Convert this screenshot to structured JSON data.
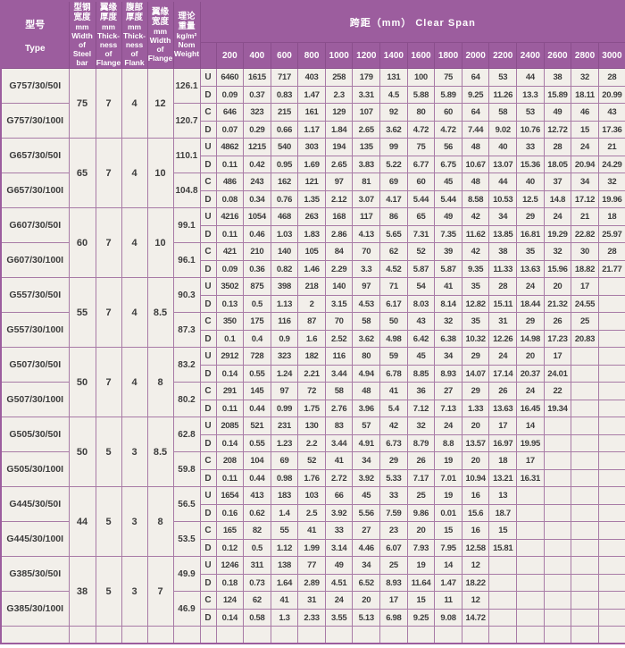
{
  "colors": {
    "header_bg": "#9c5d9e",
    "header_line": "#8a4e8c",
    "cell_bg": "#f2efea",
    "border": "#a87ba6",
    "text": "#3c3c3c",
    "header_text": "#ffffff"
  },
  "table": {
    "header": {
      "type": {
        "cn": "型号",
        "en": "Type"
      },
      "dims": [
        {
          "cn": "型钢\n宽度",
          "unit": "mm",
          "en": "Width\nof\nSteel\nbar"
        },
        {
          "cn": "翼缘\n厚度",
          "unit": "mm",
          "en": "Thick-\nness\nof\nFlange"
        },
        {
          "cn": "腹部\n厚度",
          "unit": "mm",
          "en": "Thick-\nness\nof\nFlank"
        },
        {
          "cn": "翼缘\n宽度",
          "unit": "mm",
          "en": "Width\nof\nFlange"
        },
        {
          "cn": "理论\n重量",
          "unit": "kg/m²",
          "en": "Nom\nWeight"
        }
      ],
      "clear_span": "跨距（mm） Clear Span",
      "spans": [
        "200",
        "400",
        "600",
        "800",
        "1000",
        "1200",
        "1400",
        "1600",
        "1800",
        "2000",
        "2200",
        "2400",
        "2600",
        "2800",
        "3000"
      ]
    },
    "groups": [
      {
        "types": [
          "G757/30/50I",
          "G757/30/100I"
        ],
        "width": "75",
        "flange_thickness": "7",
        "flank_thickness": "4",
        "flange_width": "12",
        "weights": [
          "126.1",
          "120.7"
        ],
        "rows": [
          {
            "key": "U",
            "values": [
              "6460",
              "1615",
              "717",
              "403",
              "258",
              "179",
              "131",
              "100",
              "75",
              "64",
              "53",
              "44",
              "38",
              "32",
              "28"
            ]
          },
          {
            "key": "D",
            "values": [
              "0.09",
              "0.37",
              "0.83",
              "1.47",
              "2.3",
              "3.31",
              "4.5",
              "5.88",
              "5.89",
              "9.25",
              "11.26",
              "13.3",
              "15.89",
              "18.11",
              "20.99"
            ]
          },
          {
            "key": "C",
            "values": [
              "646",
              "323",
              "215",
              "161",
              "129",
              "107",
              "92",
              "80",
              "60",
              "64",
              "58",
              "53",
              "49",
              "46",
              "43"
            ]
          },
          {
            "key": "D",
            "values": [
              "0.07",
              "0.29",
              "0.66",
              "1.17",
              "1.84",
              "2.65",
              "3.62",
              "4.72",
              "4.72",
              "7.44",
              "9.02",
              "10.76",
              "12.72",
              "15",
              "17.36"
            ]
          }
        ]
      },
      {
        "types": [
          "G657/30/50I",
          "G657/30/100I"
        ],
        "width": "65",
        "flange_thickness": "7",
        "flank_thickness": "4",
        "flange_width": "10",
        "weights": [
          "110.1",
          "104.8"
        ],
        "rows": [
          {
            "key": "U",
            "values": [
              "4862",
              "1215",
              "540",
              "303",
              "194",
              "135",
              "99",
              "75",
              "56",
              "48",
              "40",
              "33",
              "28",
              "24",
              "21"
            ]
          },
          {
            "key": "D",
            "values": [
              "0.11",
              "0.42",
              "0.95",
              "1.69",
              "2.65",
              "3.83",
              "5.22",
              "6.77",
              "6.75",
              "10.67",
              "13.07",
              "15.36",
              "18.05",
              "20.94",
              "24.29"
            ]
          },
          {
            "key": "C",
            "values": [
              "486",
              "243",
              "162",
              "121",
              "97",
              "81",
              "69",
              "60",
              "45",
              "48",
              "44",
              "40",
              "37",
              "34",
              "32"
            ]
          },
          {
            "key": "D",
            "values": [
              "0.08",
              "0.34",
              "0.76",
              "1.35",
              "2.12",
              "3.07",
              "4.17",
              "5.44",
              "5.44",
              "8.58",
              "10.53",
              "12.5",
              "14.8",
              "17.12",
              "19.96"
            ]
          }
        ]
      },
      {
        "types": [
          "G607/30/50I",
          "G607/30/100I"
        ],
        "width": "60",
        "flange_thickness": "7",
        "flank_thickness": "4",
        "flange_width": "10",
        "weights": [
          "99.1",
          "96.1"
        ],
        "rows": [
          {
            "key": "U",
            "values": [
              "4216",
              "1054",
              "468",
              "263",
              "168",
              "117",
              "86",
              "65",
              "49",
              "42",
              "34",
              "29",
              "24",
              "21",
              "18"
            ]
          },
          {
            "key": "D",
            "values": [
              "0.11",
              "0.46",
              "1.03",
              "1.83",
              "2.86",
              "4.13",
              "5.65",
              "7.31",
              "7.35",
              "11.62",
              "13.85",
              "16.81",
              "19.29",
              "22.82",
              "25.97"
            ]
          },
          {
            "key": "C",
            "values": [
              "421",
              "210",
              "140",
              "105",
              "84",
              "70",
              "62",
              "52",
              "39",
              "42",
              "38",
              "35",
              "32",
              "30",
              "28"
            ]
          },
          {
            "key": "D",
            "values": [
              "0.09",
              "0.36",
              "0.82",
              "1.46",
              "2.29",
              "3.3",
              "4.52",
              "5.87",
              "5.87",
              "9.35",
              "11.33",
              "13.63",
              "15.96",
              "18.82",
              "21.77"
            ]
          }
        ]
      },
      {
        "types": [
          "G557/30/50I",
          "G557/30/100I"
        ],
        "width": "55",
        "flange_thickness": "7",
        "flank_thickness": "4",
        "flange_width": "8.5",
        "weights": [
          "90.3",
          "87.3"
        ],
        "rows": [
          {
            "key": "U",
            "values": [
              "3502",
              "875",
              "398",
              "218",
              "140",
              "97",
              "71",
              "54",
              "41",
              "35",
              "28",
              "24",
              "20",
              "17",
              ""
            ]
          },
          {
            "key": "D",
            "values": [
              "0.13",
              "0.5",
              "1.13",
              "2",
              "3.15",
              "4.53",
              "6.17",
              "8.03",
              "8.14",
              "12.82",
              "15.11",
              "18.44",
              "21.32",
              "24.55",
              ""
            ]
          },
          {
            "key": "C",
            "values": [
              "350",
              "175",
              "116",
              "87",
              "70",
              "58",
              "50",
              "43",
              "32",
              "35",
              "31",
              "29",
              "26",
              "25",
              ""
            ]
          },
          {
            "key": "D",
            "values": [
              "0.1",
              "0.4",
              "0.9",
              "1.6",
              "2.52",
              "3.62",
              "4.98",
              "6.42",
              "6.38",
              "10.32",
              "12.26",
              "14.98",
              "17.23",
              "20.83",
              ""
            ]
          }
        ]
      },
      {
        "types": [
          "G507/30/50I",
          "G507/30/100I"
        ],
        "width": "50",
        "flange_thickness": "7",
        "flank_thickness": "4",
        "flange_width": "8",
        "weights": [
          "83.2",
          "80.2"
        ],
        "rows": [
          {
            "key": "U",
            "values": [
              "2912",
              "728",
              "323",
              "182",
              "116",
              "80",
              "59",
              "45",
              "34",
              "29",
              "24",
              "20",
              "17",
              "",
              ""
            ]
          },
          {
            "key": "D",
            "values": [
              "0.14",
              "0.55",
              "1.24",
              "2.21",
              "3.44",
              "4.94",
              "6.78",
              "8.85",
              "8.93",
              "14.07",
              "17.14",
              "20.37",
              "24.01",
              "",
              ""
            ]
          },
          {
            "key": "C",
            "values": [
              "291",
              "145",
              "97",
              "72",
              "58",
              "48",
              "41",
              "36",
              "27",
              "29",
              "26",
              "24",
              "22",
              "",
              ""
            ]
          },
          {
            "key": "D",
            "values": [
              "0.11",
              "0.44",
              "0.99",
              "1.75",
              "2.76",
              "3.96",
              "5.4",
              "7.12",
              "7.13",
              "1.33",
              "13.63",
              "16.45",
              "19.34",
              "",
              ""
            ]
          }
        ]
      },
      {
        "types": [
          "G505/30/50I",
          "G505/30/100I"
        ],
        "width": "50",
        "flange_thickness": "5",
        "flank_thickness": "3",
        "flange_width": "8.5",
        "weights": [
          "62.8",
          "59.8"
        ],
        "rows": [
          {
            "key": "U",
            "values": [
              "2085",
              "521",
              "231",
              "130",
              "83",
              "57",
              "42",
              "32",
              "24",
              "20",
              "17",
              "14",
              "",
              "",
              ""
            ]
          },
          {
            "key": "D",
            "values": [
              "0.14",
              "0.55",
              "1.23",
              "2.2",
              "3.44",
              "4.91",
              "6.73",
              "8.79",
              "8.8",
              "13.57",
              "16.97",
              "19.95",
              "",
              "",
              ""
            ]
          },
          {
            "key": "C",
            "values": [
              "208",
              "104",
              "69",
              "52",
              "41",
              "34",
              "29",
              "26",
              "19",
              "20",
              "18",
              "17",
              "",
              "",
              ""
            ]
          },
          {
            "key": "D",
            "values": [
              "0.11",
              "0.44",
              "0.98",
              "1.76",
              "2.72",
              "3.92",
              "5.33",
              "7.17",
              "7.01",
              "10.94",
              "13.21",
              "16.31",
              "",
              "",
              ""
            ]
          }
        ]
      },
      {
        "types": [
          "G445/30/50I",
          "G445/30/100I"
        ],
        "width": "44",
        "flange_thickness": "5",
        "flank_thickness": "3",
        "flange_width": "8",
        "weights": [
          "56.5",
          "53.5"
        ],
        "rows": [
          {
            "key": "U",
            "values": [
              "1654",
              "413",
              "183",
              "103",
              "66",
              "45",
              "33",
              "25",
              "19",
              "16",
              "13",
              "",
              "",
              "",
              ""
            ]
          },
          {
            "key": "D",
            "values": [
              "0.16",
              "0.62",
              "1.4",
              "2.5",
              "3.92",
              "5.56",
              "7.59",
              "9.86",
              "0.01",
              "15.6",
              "18.7",
              "",
              "",
              "",
              ""
            ]
          },
          {
            "key": "C",
            "values": [
              "165",
              "82",
              "55",
              "41",
              "33",
              "27",
              "23",
              "20",
              "15",
              "16",
              "15",
              "",
              "",
              "",
              ""
            ]
          },
          {
            "key": "D",
            "values": [
              "0.12",
              "0.5",
              "1.12",
              "1.99",
              "3.14",
              "4.46",
              "6.07",
              "7.93",
              "7.95",
              "12.58",
              "15.81",
              "",
              "",
              "",
              ""
            ]
          }
        ]
      },
      {
        "types": [
          "G385/30/50I",
          "G385/30/100I"
        ],
        "width": "38",
        "flange_thickness": "5",
        "flank_thickness": "3",
        "flange_width": "7",
        "weights": [
          "49.9",
          "46.9"
        ],
        "rows": [
          {
            "key": "U",
            "values": [
              "1246",
              "311",
              "138",
              "77",
              "49",
              "34",
              "25",
              "19",
              "14",
              "12",
              "",
              "",
              "",
              "",
              ""
            ]
          },
          {
            "key": "D",
            "values": [
              "0.18",
              "0.73",
              "1.64",
              "2.89",
              "4.51",
              "6.52",
              "8.93",
              "11.64",
              "1.47",
              "18.22",
              "",
              "",
              "",
              "",
              ""
            ]
          },
          {
            "key": "C",
            "values": [
              "124",
              "62",
              "41",
              "31",
              "24",
              "20",
              "17",
              "15",
              "11",
              "12",
              "",
              "",
              "",
              "",
              ""
            ]
          },
          {
            "key": "D",
            "values": [
              "0.14",
              "0.58",
              "1.3",
              "2.33",
              "3.55",
              "5.13",
              "6.98",
              "9.25",
              "9.08",
              "14.72",
              "",
              "",
              "",
              "",
              ""
            ]
          }
        ]
      }
    ]
  }
}
